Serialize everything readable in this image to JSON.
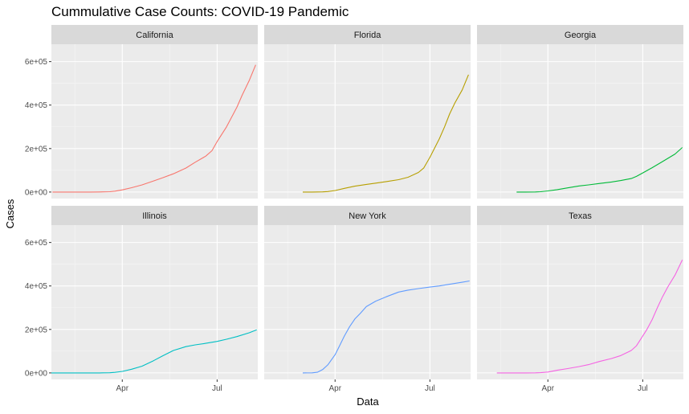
{
  "chart_data": {
    "type": "line",
    "title": "Cummulative Case Counts: COVID-19 Pandemic",
    "xlabel": "Data",
    "ylabel": "Cases",
    "ylim": [
      -30000,
      680000
    ],
    "xlim": [
      "2020-01-24",
      "2020-08-09"
    ],
    "y_ticks": [
      0,
      200000,
      400000,
      600000
    ],
    "y_tick_labels": [
      "0e+00",
      "2e+05",
      "4e+05",
      "6e+05"
    ],
    "x_ticks": [
      "2020-04-01",
      "2020-07-01"
    ],
    "x_tick_labels": [
      "Apr",
      "Jul"
    ],
    "grid": true,
    "legend": "none",
    "layout": {
      "rows": 2,
      "cols": 3
    },
    "panels": [
      {
        "name": "California",
        "color": "#F8766D",
        "points": [
          [
            "2020-01-25",
            0
          ],
          [
            "2020-02-15",
            0
          ],
          [
            "2020-03-01",
            100
          ],
          [
            "2020-03-10",
            500
          ],
          [
            "2020-03-20",
            1500
          ],
          [
            "2020-03-25",
            4000
          ],
          [
            "2020-04-01",
            10000
          ],
          [
            "2020-04-10",
            20000
          ],
          [
            "2020-04-20",
            33000
          ],
          [
            "2020-05-01",
            51000
          ],
          [
            "2020-05-10",
            66000
          ],
          [
            "2020-05-20",
            84000
          ],
          [
            "2020-06-01",
            110000
          ],
          [
            "2020-06-10",
            137000
          ],
          [
            "2020-06-20",
            165000
          ],
          [
            "2020-06-26",
            190000
          ],
          [
            "2020-07-01",
            232000
          ],
          [
            "2020-07-10",
            300000
          ],
          [
            "2020-07-20",
            390000
          ],
          [
            "2020-07-25",
            445000
          ],
          [
            "2020-08-01",
            515000
          ],
          [
            "2020-08-07",
            585000
          ]
        ]
      },
      {
        "name": "Florida",
        "color": "#B79F00",
        "points": [
          [
            "2020-03-01",
            2
          ],
          [
            "2020-03-10",
            30
          ],
          [
            "2020-03-20",
            700
          ],
          [
            "2020-03-25",
            2000
          ],
          [
            "2020-04-01",
            7000
          ],
          [
            "2020-04-10",
            17000
          ],
          [
            "2020-04-20",
            27000
          ],
          [
            "2020-05-01",
            35000
          ],
          [
            "2020-05-10",
            41000
          ],
          [
            "2020-05-20",
            48000
          ],
          [
            "2020-06-01",
            57000
          ],
          [
            "2020-06-10",
            68000
          ],
          [
            "2020-06-20",
            90000
          ],
          [
            "2020-06-25",
            110000
          ],
          [
            "2020-07-01",
            160000
          ],
          [
            "2020-07-10",
            245000
          ],
          [
            "2020-07-15",
            300000
          ],
          [
            "2020-07-20",
            360000
          ],
          [
            "2020-07-25",
            410000
          ],
          [
            "2020-08-01",
            470000
          ],
          [
            "2020-08-07",
            540000
          ]
        ]
      },
      {
        "name": "Georgia",
        "color": "#00BA38",
        "points": [
          [
            "2020-03-02",
            2
          ],
          [
            "2020-03-10",
            20
          ],
          [
            "2020-03-20",
            500
          ],
          [
            "2020-03-25",
            1500
          ],
          [
            "2020-04-01",
            5000
          ],
          [
            "2020-04-10",
            11000
          ],
          [
            "2020-04-20",
            19000
          ],
          [
            "2020-05-01",
            28000
          ],
          [
            "2020-05-10",
            33000
          ],
          [
            "2020-05-20",
            39000
          ],
          [
            "2020-06-01",
            46000
          ],
          [
            "2020-06-10",
            53000
          ],
          [
            "2020-06-20",
            62000
          ],
          [
            "2020-06-25",
            72000
          ],
          [
            "2020-07-01",
            88000
          ],
          [
            "2020-07-10",
            112000
          ],
          [
            "2020-07-20",
            140000
          ],
          [
            "2020-08-01",
            175000
          ],
          [
            "2020-08-08",
            205000
          ]
        ]
      },
      {
        "name": "Illinois",
        "color": "#00BFC4",
        "points": [
          [
            "2020-01-24",
            1
          ],
          [
            "2020-02-15",
            2
          ],
          [
            "2020-03-01",
            5
          ],
          [
            "2020-03-10",
            20
          ],
          [
            "2020-03-20",
            800
          ],
          [
            "2020-03-25",
            2500
          ],
          [
            "2020-04-01",
            7000
          ],
          [
            "2020-04-10",
            17000
          ],
          [
            "2020-04-20",
            31000
          ],
          [
            "2020-05-01",
            56000
          ],
          [
            "2020-05-10",
            79000
          ],
          [
            "2020-05-20",
            103000
          ],
          [
            "2020-06-01",
            121000
          ],
          [
            "2020-06-10",
            129000
          ],
          [
            "2020-06-20",
            136000
          ],
          [
            "2020-07-01",
            145000
          ],
          [
            "2020-07-10",
            155000
          ],
          [
            "2020-07-20",
            167000
          ],
          [
            "2020-08-01",
            185000
          ],
          [
            "2020-08-08",
            198000
          ]
        ]
      },
      {
        "name": "New York",
        "color": "#619CFF",
        "points": [
          [
            "2020-03-01",
            1
          ],
          [
            "2020-03-10",
            150
          ],
          [
            "2020-03-15",
            3000
          ],
          [
            "2020-03-20",
            15000
          ],
          [
            "2020-03-25",
            37000
          ],
          [
            "2020-04-01",
            84000
          ],
          [
            "2020-04-05",
            122000
          ],
          [
            "2020-04-10",
            170000
          ],
          [
            "2020-04-15",
            213000
          ],
          [
            "2020-04-20",
            248000
          ],
          [
            "2020-04-25",
            273000
          ],
          [
            "2020-05-01",
            305000
          ],
          [
            "2020-05-10",
            330000
          ],
          [
            "2020-05-20",
            350000
          ],
          [
            "2020-06-01",
            372000
          ],
          [
            "2020-06-10",
            381000
          ],
          [
            "2020-06-20",
            388000
          ],
          [
            "2020-07-01",
            395000
          ],
          [
            "2020-07-10",
            400000
          ],
          [
            "2020-07-20",
            408000
          ],
          [
            "2020-08-01",
            417000
          ],
          [
            "2020-08-08",
            423000
          ]
        ]
      },
      {
        "name": "Texas",
        "color": "#F564E3",
        "points": [
          [
            "2020-02-12",
            1
          ],
          [
            "2020-02-25",
            2
          ],
          [
            "2020-03-10",
            20
          ],
          [
            "2020-03-20",
            300
          ],
          [
            "2020-03-25",
            1000
          ],
          [
            "2020-04-01",
            4000
          ],
          [
            "2020-04-10",
            12000
          ],
          [
            "2020-04-20",
            20000
          ],
          [
            "2020-05-01",
            29000
          ],
          [
            "2020-05-10",
            38000
          ],
          [
            "2020-05-20",
            52000
          ],
          [
            "2020-06-01",
            66000
          ],
          [
            "2020-06-10",
            80000
          ],
          [
            "2020-06-20",
            103000
          ],
          [
            "2020-06-25",
            125000
          ],
          [
            "2020-07-01",
            170000
          ],
          [
            "2020-07-05",
            200000
          ],
          [
            "2020-07-10",
            245000
          ],
          [
            "2020-07-15",
            300000
          ],
          [
            "2020-07-20",
            350000
          ],
          [
            "2020-07-25",
            395000
          ],
          [
            "2020-08-01",
            450000
          ],
          [
            "2020-08-08",
            520000
          ]
        ]
      }
    ]
  }
}
